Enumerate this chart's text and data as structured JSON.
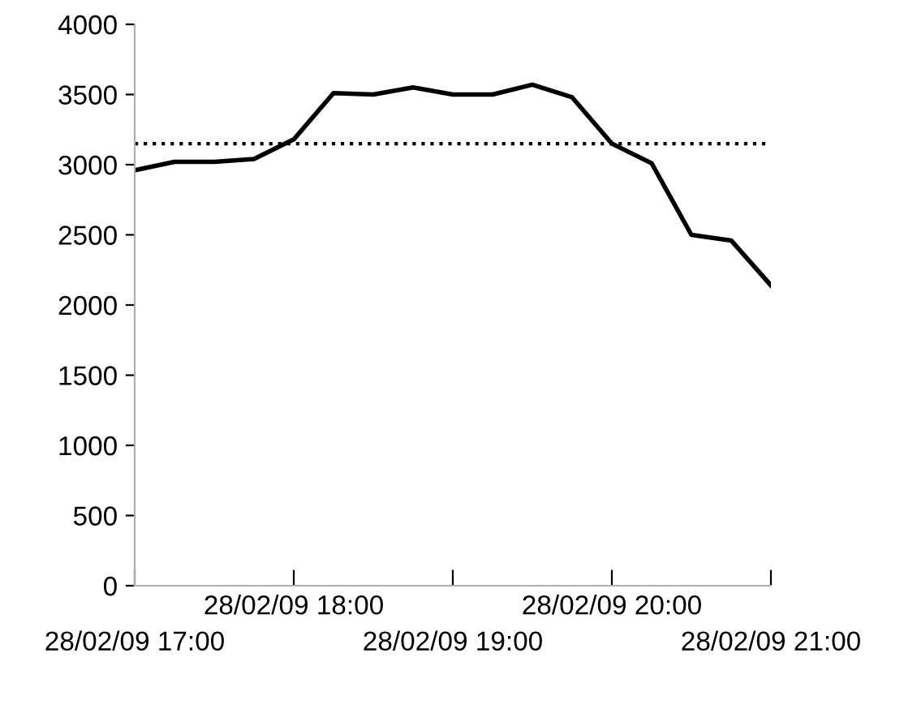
{
  "chart_data": {
    "type": "line",
    "categories": [
      "28/02/09 17:00",
      null,
      null,
      null,
      "28/02/09 18:00",
      null,
      null,
      null,
      "28/02/09 19:00",
      null,
      null,
      null,
      "28/02/09 20:00",
      null,
      null,
      null,
      "28/02/09 21:00"
    ],
    "series": [
      {
        "color": "#000000",
        "values": [
          2960,
          3020,
          3020,
          3040,
          3180,
          3510,
          3500,
          3550,
          3500,
          3500,
          3570,
          3480,
          3150,
          3010,
          2500,
          2460,
          2140
        ]
      }
    ],
    "ylim": [
      0,
      4000
    ],
    "yticks": [
      0,
      500,
      1000,
      1500,
      2000,
      2500,
      3000,
      3500,
      4000
    ],
    "ref_lines": [
      {
        "axis": "y",
        "value": 3150,
        "color": "#000000",
        "line_style": "dotted"
      }
    ],
    "grid": false,
    "legend": false,
    "marker": "none",
    "line_style": "solid"
  }
}
